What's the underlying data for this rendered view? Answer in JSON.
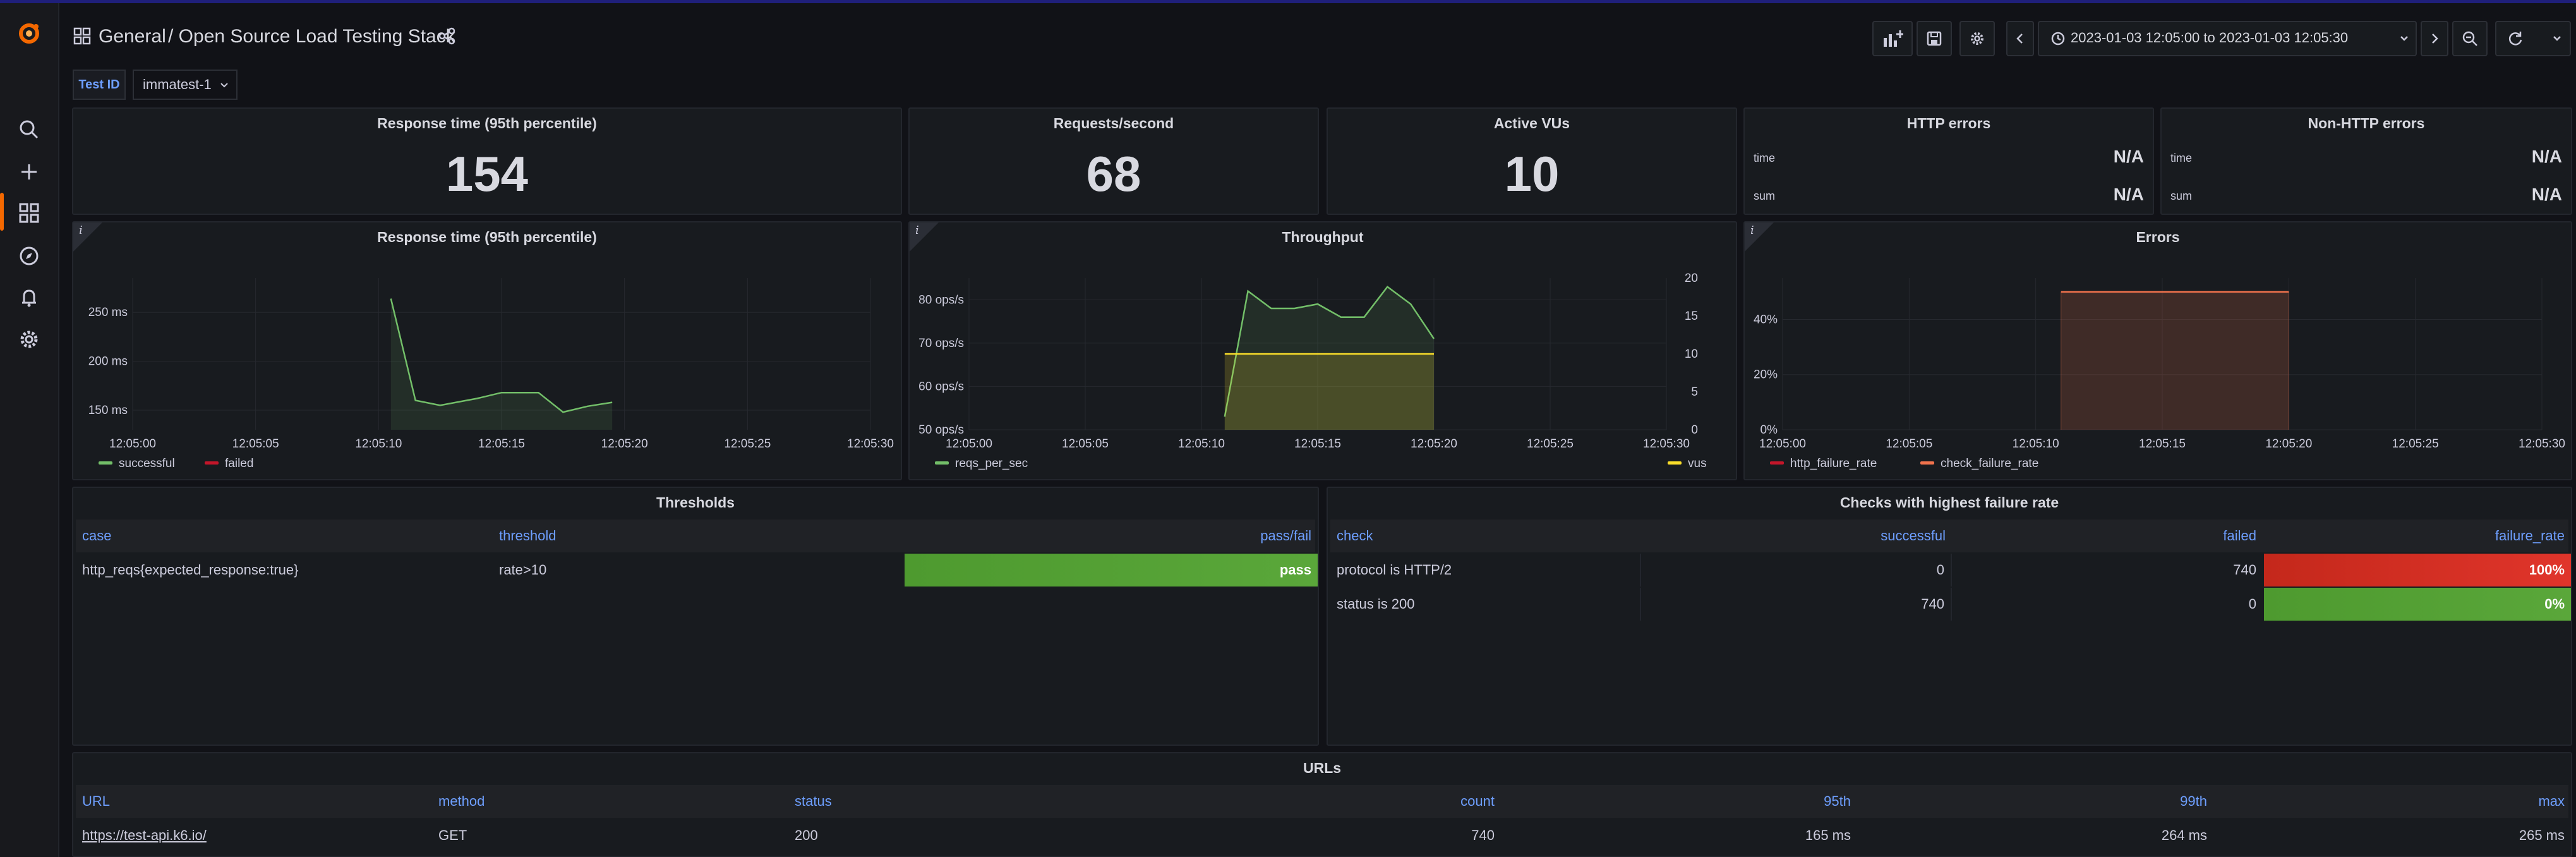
{
  "header": {
    "breadcrumb_folder": "General",
    "breadcrumb_title": "/ Open Source Load Testing Stack",
    "time_range": "2023-01-03 12:05:00 to 2023-01-03 12:05:30"
  },
  "variables": {
    "testid_label": "Test ID",
    "testid_value": "immatest-1"
  },
  "stats": {
    "response_time": {
      "title": "Response time (95th percentile)",
      "value": "154"
    },
    "requests": {
      "title": "Requests/second",
      "value": "68"
    },
    "vus": {
      "title": "Active VUs",
      "value": "10"
    },
    "http_errors": {
      "title": "HTTP errors",
      "rows": [
        {
          "k": "time",
          "v": "N/A"
        },
        {
          "k": "sum",
          "v": "N/A"
        }
      ]
    },
    "non_http_errors": {
      "title": "Non-HTTP errors",
      "rows": [
        {
          "k": "time",
          "v": "N/A"
        },
        {
          "k": "sum",
          "v": "N/A"
        }
      ]
    }
  },
  "chart_data": [
    {
      "type": "line",
      "title": "Response time (95th percentile)",
      "x": [
        "12:05:00",
        "12:05:05",
        "12:05:10",
        "12:05:15",
        "12:05:20",
        "12:05:25",
        "12:05:30"
      ],
      "ylabels": [
        "250 ms",
        "200 ms",
        "150 ms"
      ],
      "ylim": [
        130,
        285
      ],
      "series": [
        {
          "name": "successful",
          "color": "#73bf69",
          "points": [
            [
              10.5,
              264
            ],
            [
              11.5,
              160
            ],
            [
              12.5,
              155
            ],
            [
              14,
              162
            ],
            [
              15,
              168
            ],
            [
              16.5,
              168
            ],
            [
              17.5,
              148
            ],
            [
              18.5,
              154
            ],
            [
              19.5,
              158
            ]
          ]
        },
        {
          "name": "failed",
          "color": "#c4162a",
          "points": []
        }
      ]
    },
    {
      "type": "line",
      "title": "Throughput",
      "x": [
        "12:05:00",
        "12:05:05",
        "12:05:10",
        "12:05:15",
        "12:05:20",
        "12:05:25",
        "12:05:30"
      ],
      "ylabels_left": [
        "80 ops/s",
        "70 ops/s",
        "60 ops/s",
        "50 ops/s"
      ],
      "ylim_left": [
        50,
        85
      ],
      "ylabels_right": [
        "20",
        "15",
        "10",
        "5",
        "0"
      ],
      "ylim_right": [
        0,
        20
      ],
      "series": [
        {
          "name": "reqs_per_sec",
          "color": "#73bf69",
          "axis": "left",
          "points": [
            [
              11,
              53
            ],
            [
              12,
              82
            ],
            [
              13,
              78
            ],
            [
              14,
              78
            ],
            [
              15,
              79
            ],
            [
              16,
              76
            ],
            [
              17,
              76
            ],
            [
              18,
              83
            ],
            [
              19,
              79
            ],
            [
              20,
              71
            ]
          ]
        },
        {
          "name": "vus",
          "color": "#fade2a",
          "axis": "right",
          "points": [
            [
              11,
              10
            ],
            [
              20,
              10
            ]
          ]
        }
      ]
    },
    {
      "type": "area",
      "title": "Errors",
      "x": [
        "12:05:00",
        "12:05:05",
        "12:05:10",
        "12:05:15",
        "12:05:20",
        "12:05:25",
        "12:05:30"
      ],
      "ylabels": [
        "40%",
        "20%",
        "0%"
      ],
      "ylim": [
        0,
        55
      ],
      "series": [
        {
          "name": "http_failure_rate",
          "color": "#c4162a",
          "points": []
        },
        {
          "name": "check_failure_rate",
          "color": "#f2734d",
          "points": [
            [
              11,
              50
            ],
            [
              20,
              50
            ]
          ]
        }
      ]
    }
  ],
  "thresholds": {
    "title": "Thresholds",
    "headers": [
      "case",
      "threshold",
      "pass/fail"
    ],
    "rows": [
      {
        "case": "http_reqs{expected_response:true}",
        "threshold": "rate>10",
        "result": "pass"
      }
    ]
  },
  "checks": {
    "title": "Checks with highest failure rate",
    "headers": [
      "check",
      "successful",
      "failed",
      "failure_rate"
    ],
    "rows": [
      {
        "check": "protocol is HTTP/2",
        "successful": "0",
        "failed": "740",
        "rate": "100%",
        "rate_value": 100
      },
      {
        "check": "status is 200",
        "successful": "740",
        "failed": "0",
        "rate": "0%",
        "rate_value": 0
      }
    ]
  },
  "urls": {
    "title": "URLs",
    "headers": [
      "URL",
      "method",
      "status",
      "count",
      "95th",
      "99th",
      "max"
    ],
    "rows": [
      {
        "url": "https://test-api.k6.io/",
        "method": "GET",
        "status": "200",
        "count": "740",
        "p95": "165 ms",
        "p99": "264 ms",
        "max": "265 ms"
      }
    ]
  },
  "colors": {
    "accent": "#6e9fff",
    "green": "#73bf69",
    "yellow": "#fade2a",
    "red": "#c4162a",
    "orange": "#f2734d"
  }
}
